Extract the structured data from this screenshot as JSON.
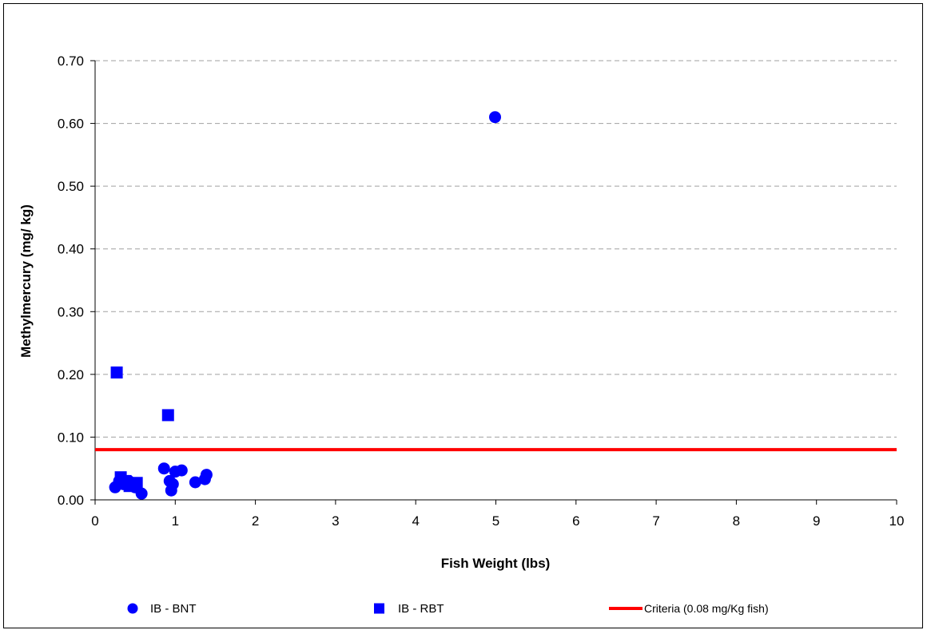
{
  "chart_data": {
    "type": "scatter",
    "xlabel": "Fish Weight (lbs)",
    "ylabel": "Methylmercury (mg/ kg)",
    "xlim": [
      0,
      10
    ],
    "ylim": [
      0,
      0.7
    ],
    "x_ticks": [
      "0",
      "1",
      "2",
      "3",
      "4",
      "5",
      "6",
      "7",
      "8",
      "9",
      "10"
    ],
    "y_ticks": [
      "0.00",
      "0.10",
      "0.20",
      "0.30",
      "0.40",
      "0.50",
      "0.60",
      "0.70"
    ],
    "grid": "horizontal dashed",
    "legend_position": "bottom",
    "series": [
      {
        "name": "IB - BNT",
        "marker": "circle",
        "color": "#0000ff",
        "points": [
          [
            0.25,
            0.02
          ],
          [
            0.3,
            0.03
          ],
          [
            0.35,
            0.025
          ],
          [
            0.42,
            0.03
          ],
          [
            0.5,
            0.02
          ],
          [
            0.58,
            0.01
          ],
          [
            0.86,
            0.05
          ],
          [
            0.93,
            0.03
          ],
          [
            0.95,
            0.015
          ],
          [
            0.97,
            0.025
          ],
          [
            1.0,
            0.045
          ],
          [
            1.08,
            0.047
          ],
          [
            1.25,
            0.028
          ],
          [
            1.37,
            0.033
          ],
          [
            1.39,
            0.04
          ],
          [
            4.99,
            0.61
          ]
        ]
      },
      {
        "name": "IB - RBT",
        "marker": "square",
        "color": "#0000ff",
        "points": [
          [
            0.27,
            0.203
          ],
          [
            0.32,
            0.036
          ],
          [
            0.38,
            0.03
          ],
          [
            0.43,
            0.022
          ],
          [
            0.48,
            0.025
          ],
          [
            0.52,
            0.027
          ],
          [
            0.91,
            0.135
          ]
        ]
      },
      {
        "name": "Criteria (0.08 mg/Kg fish)",
        "type": "hline",
        "color": "#ff0000",
        "y": 0.08
      }
    ]
  }
}
